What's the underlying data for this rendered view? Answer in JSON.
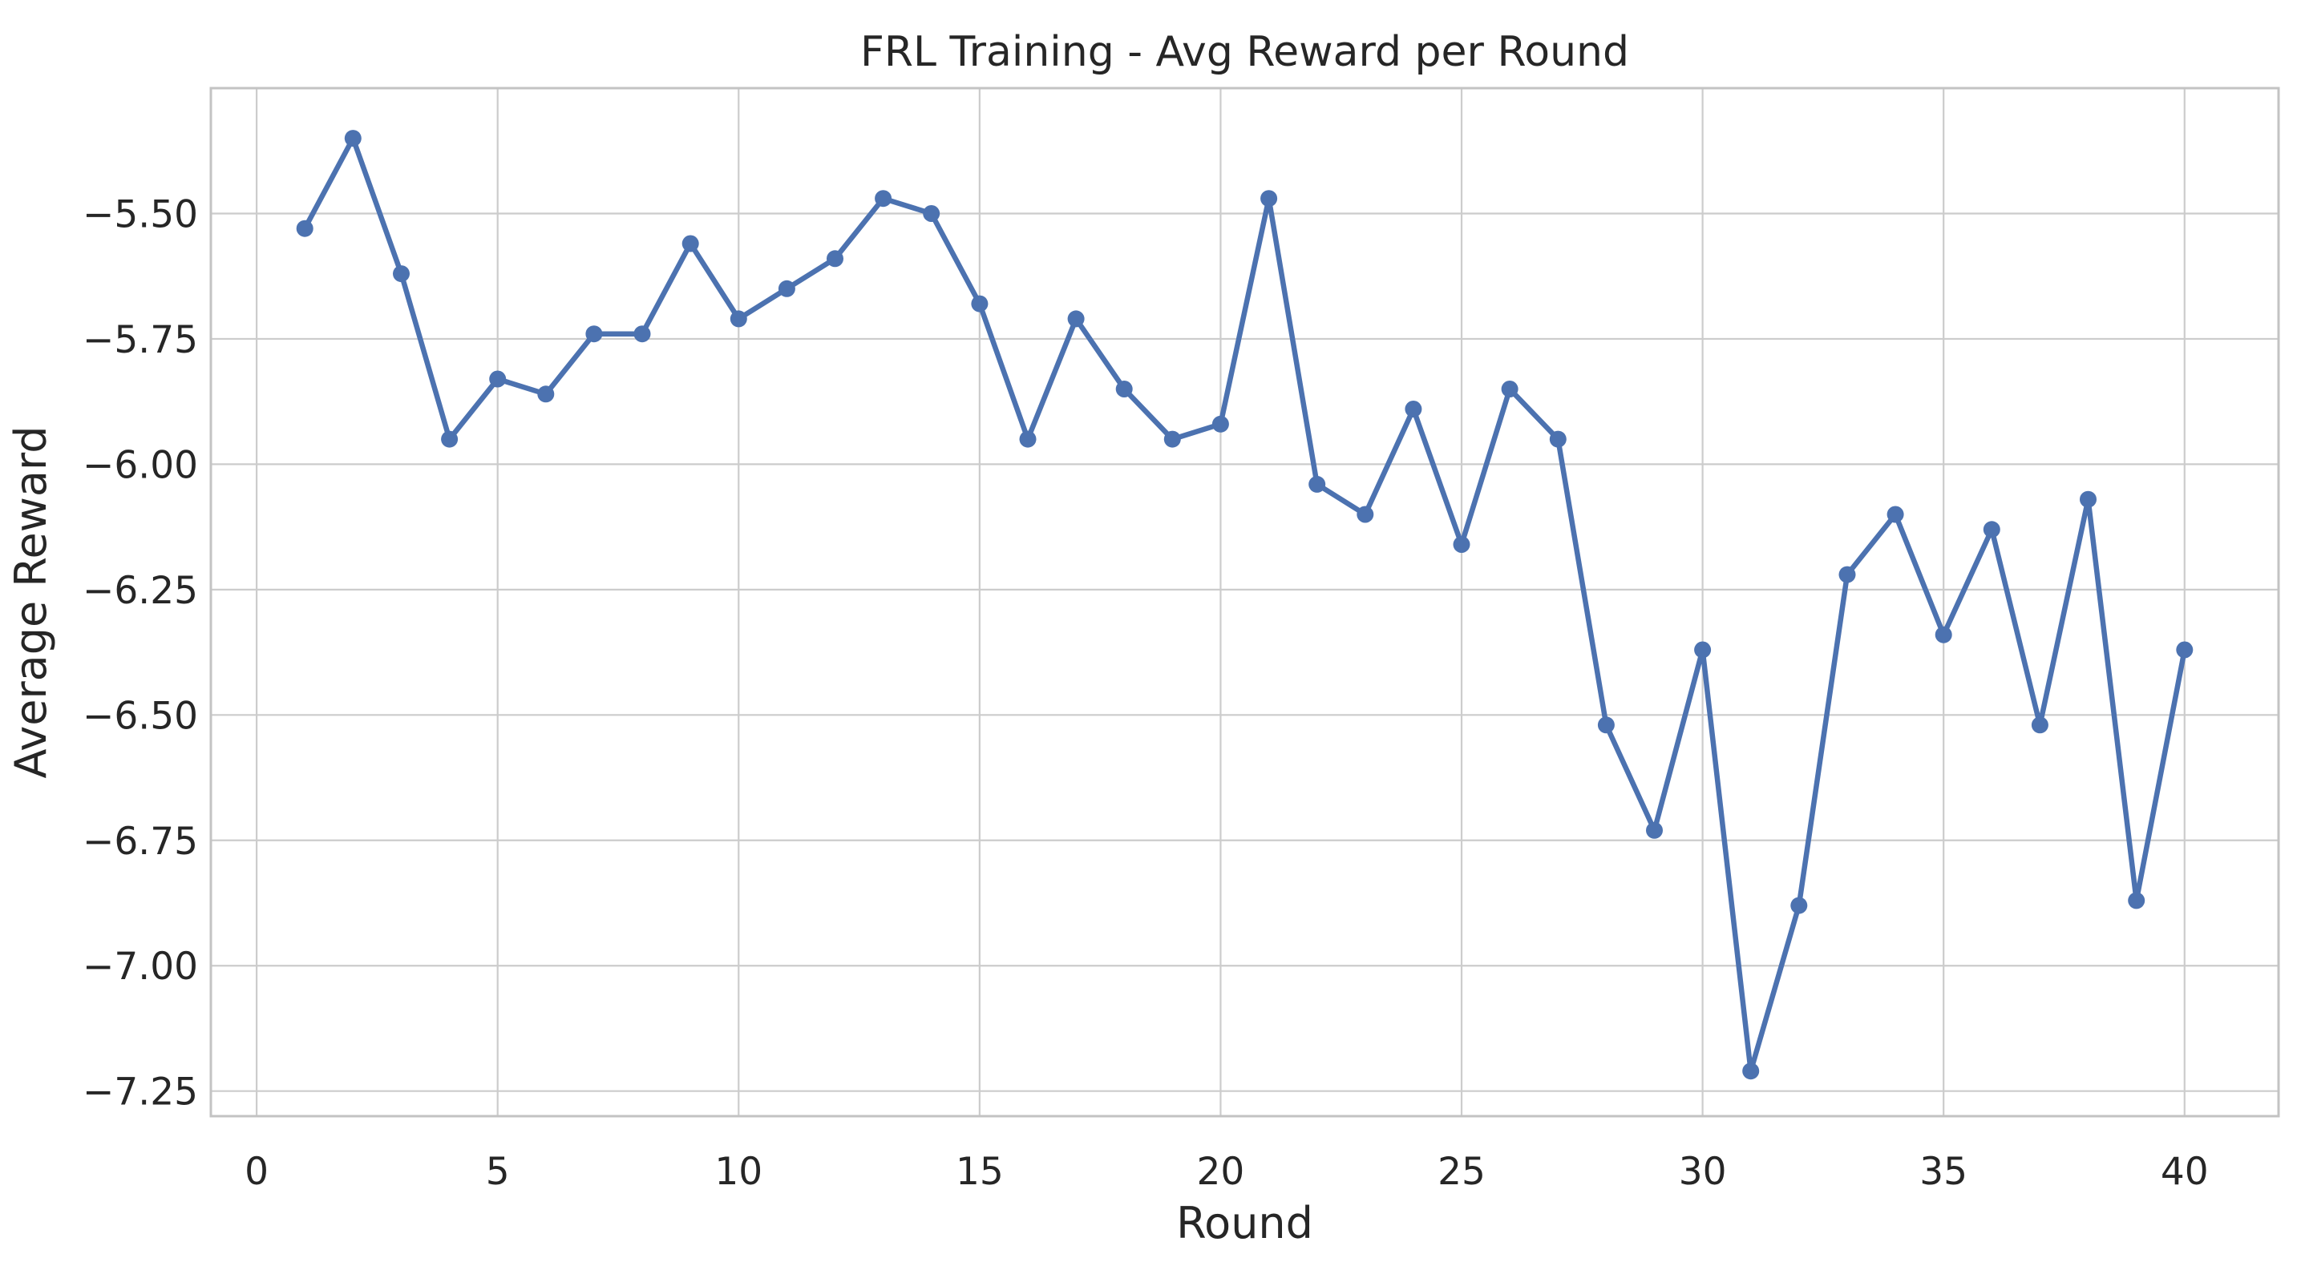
{
  "chart_data": {
    "type": "line",
    "title": "FRL Training - Avg Reward per Round",
    "xlabel": "Round",
    "ylabel": "Average Reward",
    "x": [
      1,
      2,
      3,
      4,
      5,
      6,
      7,
      8,
      9,
      10,
      11,
      12,
      13,
      14,
      15,
      16,
      17,
      18,
      19,
      20,
      21,
      22,
      23,
      24,
      25,
      26,
      27,
      28,
      29,
      30,
      31,
      32,
      33,
      34,
      35,
      36,
      37,
      38,
      39,
      40
    ],
    "y": [
      -5.53,
      -5.35,
      -5.62,
      -5.95,
      -5.83,
      -5.86,
      -5.74,
      -5.74,
      -5.56,
      -5.71,
      -5.65,
      -5.59,
      -5.47,
      -5.5,
      -5.68,
      -5.95,
      -5.71,
      -5.85,
      -5.95,
      -5.92,
      -5.47,
      -6.04,
      -6.1,
      -5.89,
      -6.16,
      -5.85,
      -5.95,
      -6.52,
      -6.73,
      -6.37,
      -7.21,
      -6.88,
      -6.22,
      -6.1,
      -6.34,
      -6.13,
      -6.52,
      -6.07,
      -6.87,
      -6.37
    ],
    "series_name": "Average Reward",
    "xlim": [
      -0.95,
      41.95
    ],
    "ylim": [
      -7.3,
      -5.25
    ],
    "xticks": {
      "values": [
        0,
        5,
        10,
        15,
        20,
        25,
        30,
        35,
        40
      ],
      "labels": [
        "0",
        "5",
        "10",
        "15",
        "20",
        "25",
        "30",
        "35",
        "40"
      ]
    },
    "yticks": {
      "values": [
        -5.5,
        -5.75,
        -6.0,
        -6.25,
        -6.5,
        -6.75,
        -7.0,
        -7.25
      ],
      "labels": [
        "−5.50",
        "−5.75",
        "−6.00",
        "−6.25",
        "−6.50",
        "−6.75",
        "−7.00",
        "−7.25"
      ]
    },
    "grid": true,
    "legend_position": "none",
    "marker": "circle",
    "colors": {
      "line": "#4C72B0",
      "marker": "#4C72B0",
      "grid": "#cccccc",
      "spine": "#c3c3c3",
      "text": "#262626",
      "background": "#ffffff"
    }
  }
}
